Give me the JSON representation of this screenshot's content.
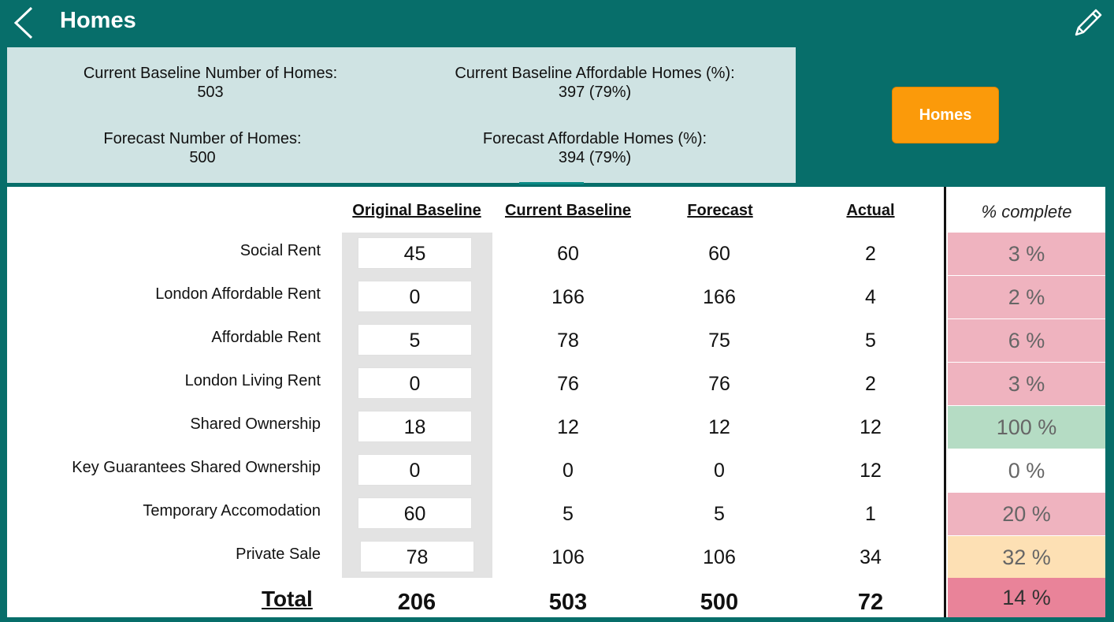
{
  "header": {
    "title": "Homes"
  },
  "summary": {
    "current_baseline_homes_label": "Current Baseline Number of Homes:",
    "current_baseline_homes_value": "503",
    "current_baseline_affordable_label": "Current Baseline Affordable Homes (%):",
    "current_baseline_affordable_value": "397 (79%)",
    "forecast_homes_label": "Forecast Number of Homes:",
    "forecast_homes_value": "500",
    "forecast_affordable_label": "Forecast Affordable Homes (%):",
    "forecast_affordable_value": "394 (79%)"
  },
  "homes_button": {
    "label": "Homes"
  },
  "table": {
    "headers": {
      "original_baseline": "Original Baseline",
      "current_baseline": "Current Baseline",
      "forecast": "Forecast",
      "actual": "Actual",
      "percent_complete": "% complete"
    },
    "rows": [
      {
        "label": "Social Rent",
        "original": "45",
        "current": "60",
        "forecast": "60",
        "actual": "2",
        "pct": "3 %",
        "pct_color": "#efb3bf"
      },
      {
        "label": "London Affordable Rent",
        "original": "0",
        "current": "166",
        "forecast": "166",
        "actual": "4",
        "pct": "2 %",
        "pct_color": "#efb3bf"
      },
      {
        "label": "Affordable Rent",
        "original": "5",
        "current": "78",
        "forecast": "75",
        "actual": "5",
        "pct": "6 %",
        "pct_color": "#efb3bf"
      },
      {
        "label": "London Living Rent",
        "original": "0",
        "current": "76",
        "forecast": "76",
        "actual": "2",
        "pct": "3 %",
        "pct_color": "#efb3bf"
      },
      {
        "label": "Shared Ownership",
        "original": "18",
        "current": "12",
        "forecast": "12",
        "actual": "12",
        "pct": "100 %",
        "pct_color": "#b5dcc4"
      },
      {
        "label": "Key Guarantees Shared Ownership",
        "original": "0",
        "current": "0",
        "forecast": "0",
        "actual": "12",
        "pct": "0 %",
        "pct_color": "#ffffff"
      },
      {
        "label": "Temporary Accomodation",
        "original": "60",
        "current": "5",
        "forecast": "5",
        "actual": "1",
        "pct": "20 %",
        "pct_color": "#efb3bf"
      },
      {
        "label": "Private Sale",
        "original": "78",
        "current": "106",
        "forecast": "106",
        "actual": "34",
        "pct": "32 %",
        "pct_color": "#fde0b4"
      }
    ],
    "total": {
      "label": "Total",
      "original": "206",
      "current": "503",
      "forecast": "500",
      "actual": "72",
      "pct": "14 %",
      "pct_color": "#e98399"
    }
  },
  "colors": {
    "teal": "#076e6a",
    "summary_bg": "#cfe3e3",
    "accent_orange": "#fb9a0a"
  },
  "icons": {
    "back": "chevron-left-icon",
    "edit": "pencil-icon"
  }
}
